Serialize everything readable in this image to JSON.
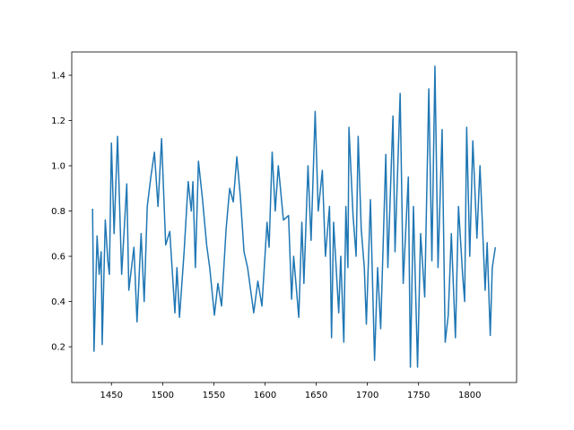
{
  "chart_data": {
    "type": "line",
    "color": "#1f77b4",
    "x": [
      1431.6,
      1433,
      1436,
      1438,
      1440,
      1441,
      1444,
      1446.5,
      1448,
      1450,
      1452.6,
      1456,
      1460,
      1465,
      1467,
      1472,
      1475,
      1479,
      1482,
      1485,
      1488.5,
      1492,
      1495.5,
      1499,
      1503,
      1507,
      1512,
      1514,
      1516.5,
      1521,
      1525,
      1528,
      1529.6,
      1532,
      1535,
      1539,
      1543,
      1546,
      1550.6,
      1554,
      1557.6,
      1562,
      1565.5,
      1569,
      1572.5,
      1576,
      1579.5,
      1583,
      1589,
      1593,
      1597,
      1602,
      1604,
      1607,
      1610,
      1613,
      1618,
      1623,
      1626,
      1628,
      1633,
      1636,
      1638,
      1642,
      1645,
      1649,
      1652,
      1656,
      1659,
      1663,
      1665,
      1667,
      1672,
      1674,
      1677,
      1679,
      1681,
      1682,
      1686,
      1689,
      1691,
      1694,
      1697,
      1699,
      1703,
      1707,
      1710,
      1713,
      1718,
      1720,
      1725,
      1727,
      1732,
      1735,
      1740,
      1742,
      1745,
      1749,
      1752,
      1756,
      1760,
      1763,
      1766,
      1769,
      1773,
      1776,
      1779,
      1782,
      1786,
      1789,
      1793,
      1795,
      1797,
      1800,
      1803,
      1807,
      1810,
      1815,
      1817,
      1820,
      1822,
      1825
    ],
    "values": [
      0.81,
      0.18,
      0.69,
      0.52,
      0.62,
      0.21,
      0.76,
      0.58,
      0.52,
      1.1,
      0.7,
      1.13,
      0.52,
      0.92,
      0.45,
      0.64,
      0.31,
      0.7,
      0.4,
      0.82,
      0.95,
      1.06,
      0.82,
      1.12,
      0.65,
      0.71,
      0.35,
      0.55,
      0.33,
      0.62,
      0.93,
      0.8,
      0.93,
      0.55,
      1.02,
      0.85,
      0.65,
      0.55,
      0.34,
      0.48,
      0.38,
      0.72,
      0.9,
      0.84,
      1.04,
      0.86,
      0.62,
      0.55,
      0.35,
      0.49,
      0.38,
      0.75,
      0.64,
      1.06,
      0.8,
      1.0,
      0.76,
      0.78,
      0.41,
      0.6,
      0.33,
      0.75,
      0.48,
      1.0,
      0.67,
      1.24,
      0.8,
      0.98,
      0.6,
      0.82,
      0.24,
      0.75,
      0.35,
      0.6,
      0.22,
      0.82,
      0.55,
      1.17,
      0.78,
      0.6,
      1.13,
      0.72,
      0.55,
      0.3,
      0.85,
      0.14,
      0.55,
      0.28,
      1.05,
      0.55,
      1.22,
      0.62,
      1.32,
      0.48,
      0.95,
      0.11,
      0.82,
      0.11,
      0.7,
      0.42,
      1.34,
      0.58,
      1.44,
      0.55,
      1.16,
      0.22,
      0.34,
      0.7,
      0.24,
      0.82,
      0.52,
      0.4,
      1.17,
      0.6,
      1.11,
      0.68,
      1.0,
      0.45,
      0.66,
      0.25,
      0.55,
      0.64
    ],
    "xlim": [
      1411.25,
      1845.75
    ],
    "xticks": [
      1450,
      1500,
      1550,
      1600,
      1650,
      1700,
      1750,
      1800
    ],
    "ylim": [
      0.042,
      1.503
    ],
    "yticks": [
      0.2,
      0.4,
      0.6,
      0.8,
      {
        "value": 1,
        "label": "1.0"
      },
      1.2,
      1.4
    ]
  }
}
